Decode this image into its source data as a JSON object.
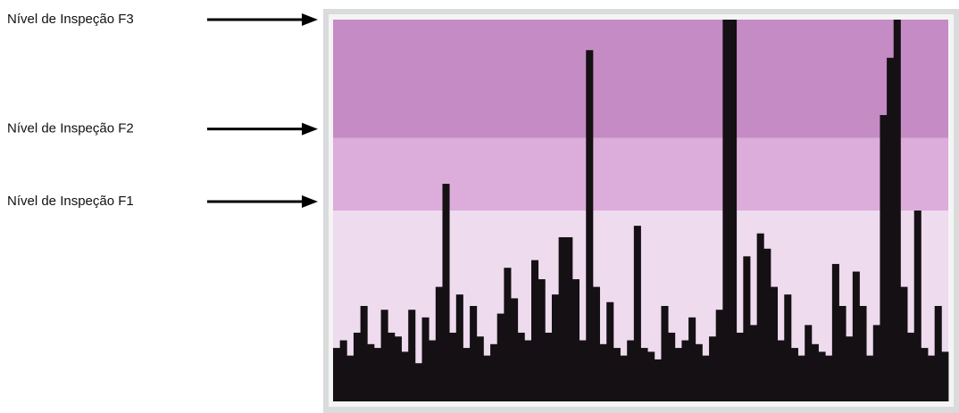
{
  "chart_data": {
    "type": "bar",
    "values": [
      14,
      16,
      12,
      18,
      25,
      15,
      14,
      24,
      18,
      17,
      13,
      24,
      10,
      22,
      16,
      30,
      57,
      18,
      28,
      14,
      25,
      17,
      12,
      15,
      23,
      35,
      27,
      18,
      16,
      37,
      32,
      18,
      28,
      43,
      43,
      32,
      16,
      92,
      30,
      15,
      26,
      14,
      12,
      16,
      46,
      14,
      13,
      11,
      25,
      18,
      14,
      16,
      22,
      15,
      12,
      17,
      24,
      100,
      100,
      18,
      38,
      20,
      44,
      40,
      30,
      16,
      28,
      14,
      12,
      20,
      15,
      13,
      12,
      36,
      25,
      17,
      34,
      25,
      12,
      20,
      75,
      90,
      100,
      30,
      18,
      50,
      14,
      12,
      25,
      13
    ],
    "color": "#141014",
    "ylim": [
      0,
      100
    ],
    "bands": [
      {
        "label": "Nível de Inspeção F1",
        "from": 0,
        "to": 50,
        "color": "#eedbee"
      },
      {
        "label": "Nível de Inspeção F2",
        "from": 50,
        "to": 69,
        "color": "#dcaddb"
      },
      {
        "label": "Nível de Inspeção F3",
        "from": 69,
        "to": 100,
        "color": "#c58bc4"
      }
    ]
  }
}
